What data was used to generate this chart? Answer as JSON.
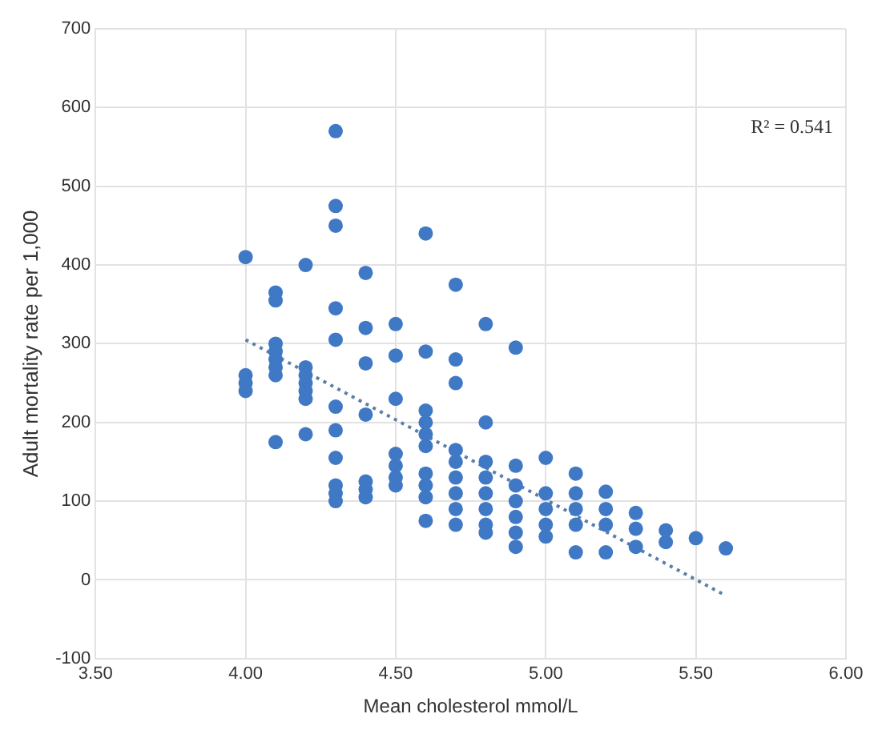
{
  "chart_data": {
    "type": "scatter",
    "xlabel": "Mean cholesterol mmol/L",
    "ylabel": "Adult mortality rate per 1,000",
    "annotations": [
      "R² = 0.541"
    ],
    "xlim": [
      3.5,
      6.0
    ],
    "xticks": [
      {
        "value": 3.5,
        "label": "3.50"
      },
      {
        "value": 4.0,
        "label": "4.00"
      },
      {
        "value": 4.5,
        "label": "4.50"
      },
      {
        "value": 5.0,
        "label": "5.00"
      },
      {
        "value": 5.5,
        "label": "5.50"
      },
      {
        "value": 6.0,
        "label": "6.00"
      }
    ],
    "ylim": [
      -100,
      700
    ],
    "yticks": [
      -100,
      0,
      100,
      200,
      300,
      400,
      500,
      600,
      700
    ],
    "grid": true,
    "legend": false,
    "series": [
      {
        "color": "#3f78c4",
        "marker": "circle",
        "x": [
          4.0,
          4.0,
          4.0,
          4.0,
          4.1,
          4.1,
          4.1,
          4.1,
          4.1,
          4.1,
          4.1,
          4.1,
          4.2,
          4.2,
          4.2,
          4.2,
          4.2,
          4.2,
          4.2,
          4.3,
          4.3,
          4.3,
          4.3,
          4.3,
          4.3,
          4.3,
          4.3,
          4.3,
          4.3,
          4.3,
          4.4,
          4.4,
          4.4,
          4.4,
          4.4,
          4.4,
          4.4,
          4.5,
          4.5,
          4.5,
          4.5,
          4.5,
          4.5,
          4.5,
          4.6,
          4.6,
          4.6,
          4.6,
          4.6,
          4.6,
          4.6,
          4.6,
          4.6,
          4.6,
          4.7,
          4.7,
          4.7,
          4.7,
          4.7,
          4.7,
          4.7,
          4.7,
          4.7,
          4.8,
          4.8,
          4.8,
          4.8,
          4.8,
          4.8,
          4.8,
          4.8,
          4.9,
          4.9,
          4.9,
          4.9,
          4.9,
          4.9,
          4.9,
          5.0,
          5.0,
          5.0,
          5.0,
          5.0,
          5.1,
          5.1,
          5.1,
          5.1,
          5.1,
          5.2,
          5.2,
          5.2,
          5.2,
          5.3,
          5.3,
          5.3,
          5.4,
          5.4,
          5.5,
          5.6
        ],
        "values": [
          410,
          260,
          250,
          240,
          365,
          355,
          300,
          290,
          280,
          270,
          260,
          175,
          400,
          270,
          260,
          250,
          240,
          230,
          185,
          570,
          475,
          450,
          345,
          305,
          220,
          190,
          155,
          120,
          110,
          100,
          390,
          320,
          275,
          210,
          125,
          115,
          105,
          325,
          285,
          230,
          160,
          145,
          130,
          120,
          440,
          290,
          215,
          200,
          185,
          170,
          135,
          120,
          105,
          75,
          375,
          280,
          250,
          165,
          150,
          130,
          110,
          90,
          70,
          325,
          200,
          150,
          130,
          110,
          90,
          70,
          60,
          295,
          145,
          120,
          100,
          80,
          60,
          42,
          155,
          110,
          90,
          70,
          55,
          135,
          110,
          90,
          70,
          35,
          112,
          90,
          70,
          35,
          85,
          65,
          42,
          63,
          48,
          53,
          40
        ]
      },
      {
        "type": "line",
        "color": "#5b7fa8",
        "marker": "none",
        "line_style": "dotted",
        "x": [
          4.0,
          5.6
        ],
        "values": [
          305,
          -20
        ]
      }
    ]
  }
}
